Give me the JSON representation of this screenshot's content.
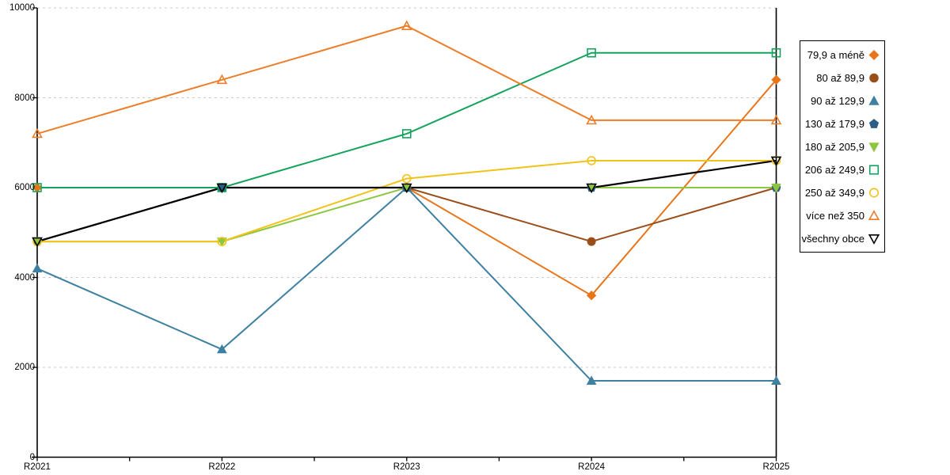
{
  "chart_data": {
    "type": "line",
    "title": "",
    "xlabel": "",
    "ylabel": "",
    "x_categories": [
      "R2021",
      "R2022",
      "R2023",
      "R2024",
      "R2025"
    ],
    "ylim": [
      0,
      10000
    ],
    "yticks": [
      0,
      2000,
      4000,
      6000,
      8000,
      10000
    ],
    "grid": "horizontal-dashed",
    "legend_position": "right",
    "series": [
      {
        "name": "79,9 a méně",
        "color": "#E8751A",
        "marker": "diamond",
        "marker_style": "filled",
        "values": [
          6000,
          6000,
          6000,
          3600,
          8400
        ]
      },
      {
        "name": "80 až 89,9",
        "color": "#9A4E19",
        "marker": "circle",
        "marker_style": "filled",
        "values": [
          4800,
          6000,
          6000,
          4800,
          6000
        ]
      },
      {
        "name": "90 až 129,9",
        "color": "#3E80A0",
        "marker": "triangle-up",
        "marker_style": "filled",
        "values": [
          4200,
          2400,
          6000,
          1700,
          1700
        ]
      },
      {
        "name": "130 až 179,9",
        "color": "#2B5F88",
        "marker": "pentagon",
        "marker_style": "filled",
        "values": [
          4800,
          6000,
          6000,
          6000,
          6000
        ]
      },
      {
        "name": "180 až 205,9",
        "color": "#8DC63F",
        "marker": "triangle-down",
        "marker_style": "filled",
        "values": [
          4800,
          4800,
          6000,
          6000,
          6000
        ]
      },
      {
        "name": "206 až 249,9",
        "color": "#14A35C",
        "marker": "square",
        "marker_style": "hollow",
        "values": [
          6000,
          6000,
          7200,
          9000,
          9000
        ]
      },
      {
        "name": "250 až 349,9",
        "color": "#F1C318",
        "marker": "circle",
        "marker_style": "hollow",
        "values": [
          4800,
          4800,
          6200,
          6600,
          6600
        ]
      },
      {
        "name": "více než 350",
        "color": "#ED7D28",
        "marker": "triangle-up",
        "marker_style": "hollow",
        "values": [
          7200,
          8400,
          9600,
          7500,
          7500
        ]
      },
      {
        "name": "všechny obce",
        "color": "#000000",
        "marker": "triangle-down",
        "marker_style": "hollow",
        "values": [
          4800,
          6000,
          6000,
          6000,
          6600
        ]
      }
    ]
  },
  "colors": {
    "background": "#ffffff",
    "axis": "#000000",
    "gridline": "#c9c9c9",
    "legend_border": "#000000"
  }
}
